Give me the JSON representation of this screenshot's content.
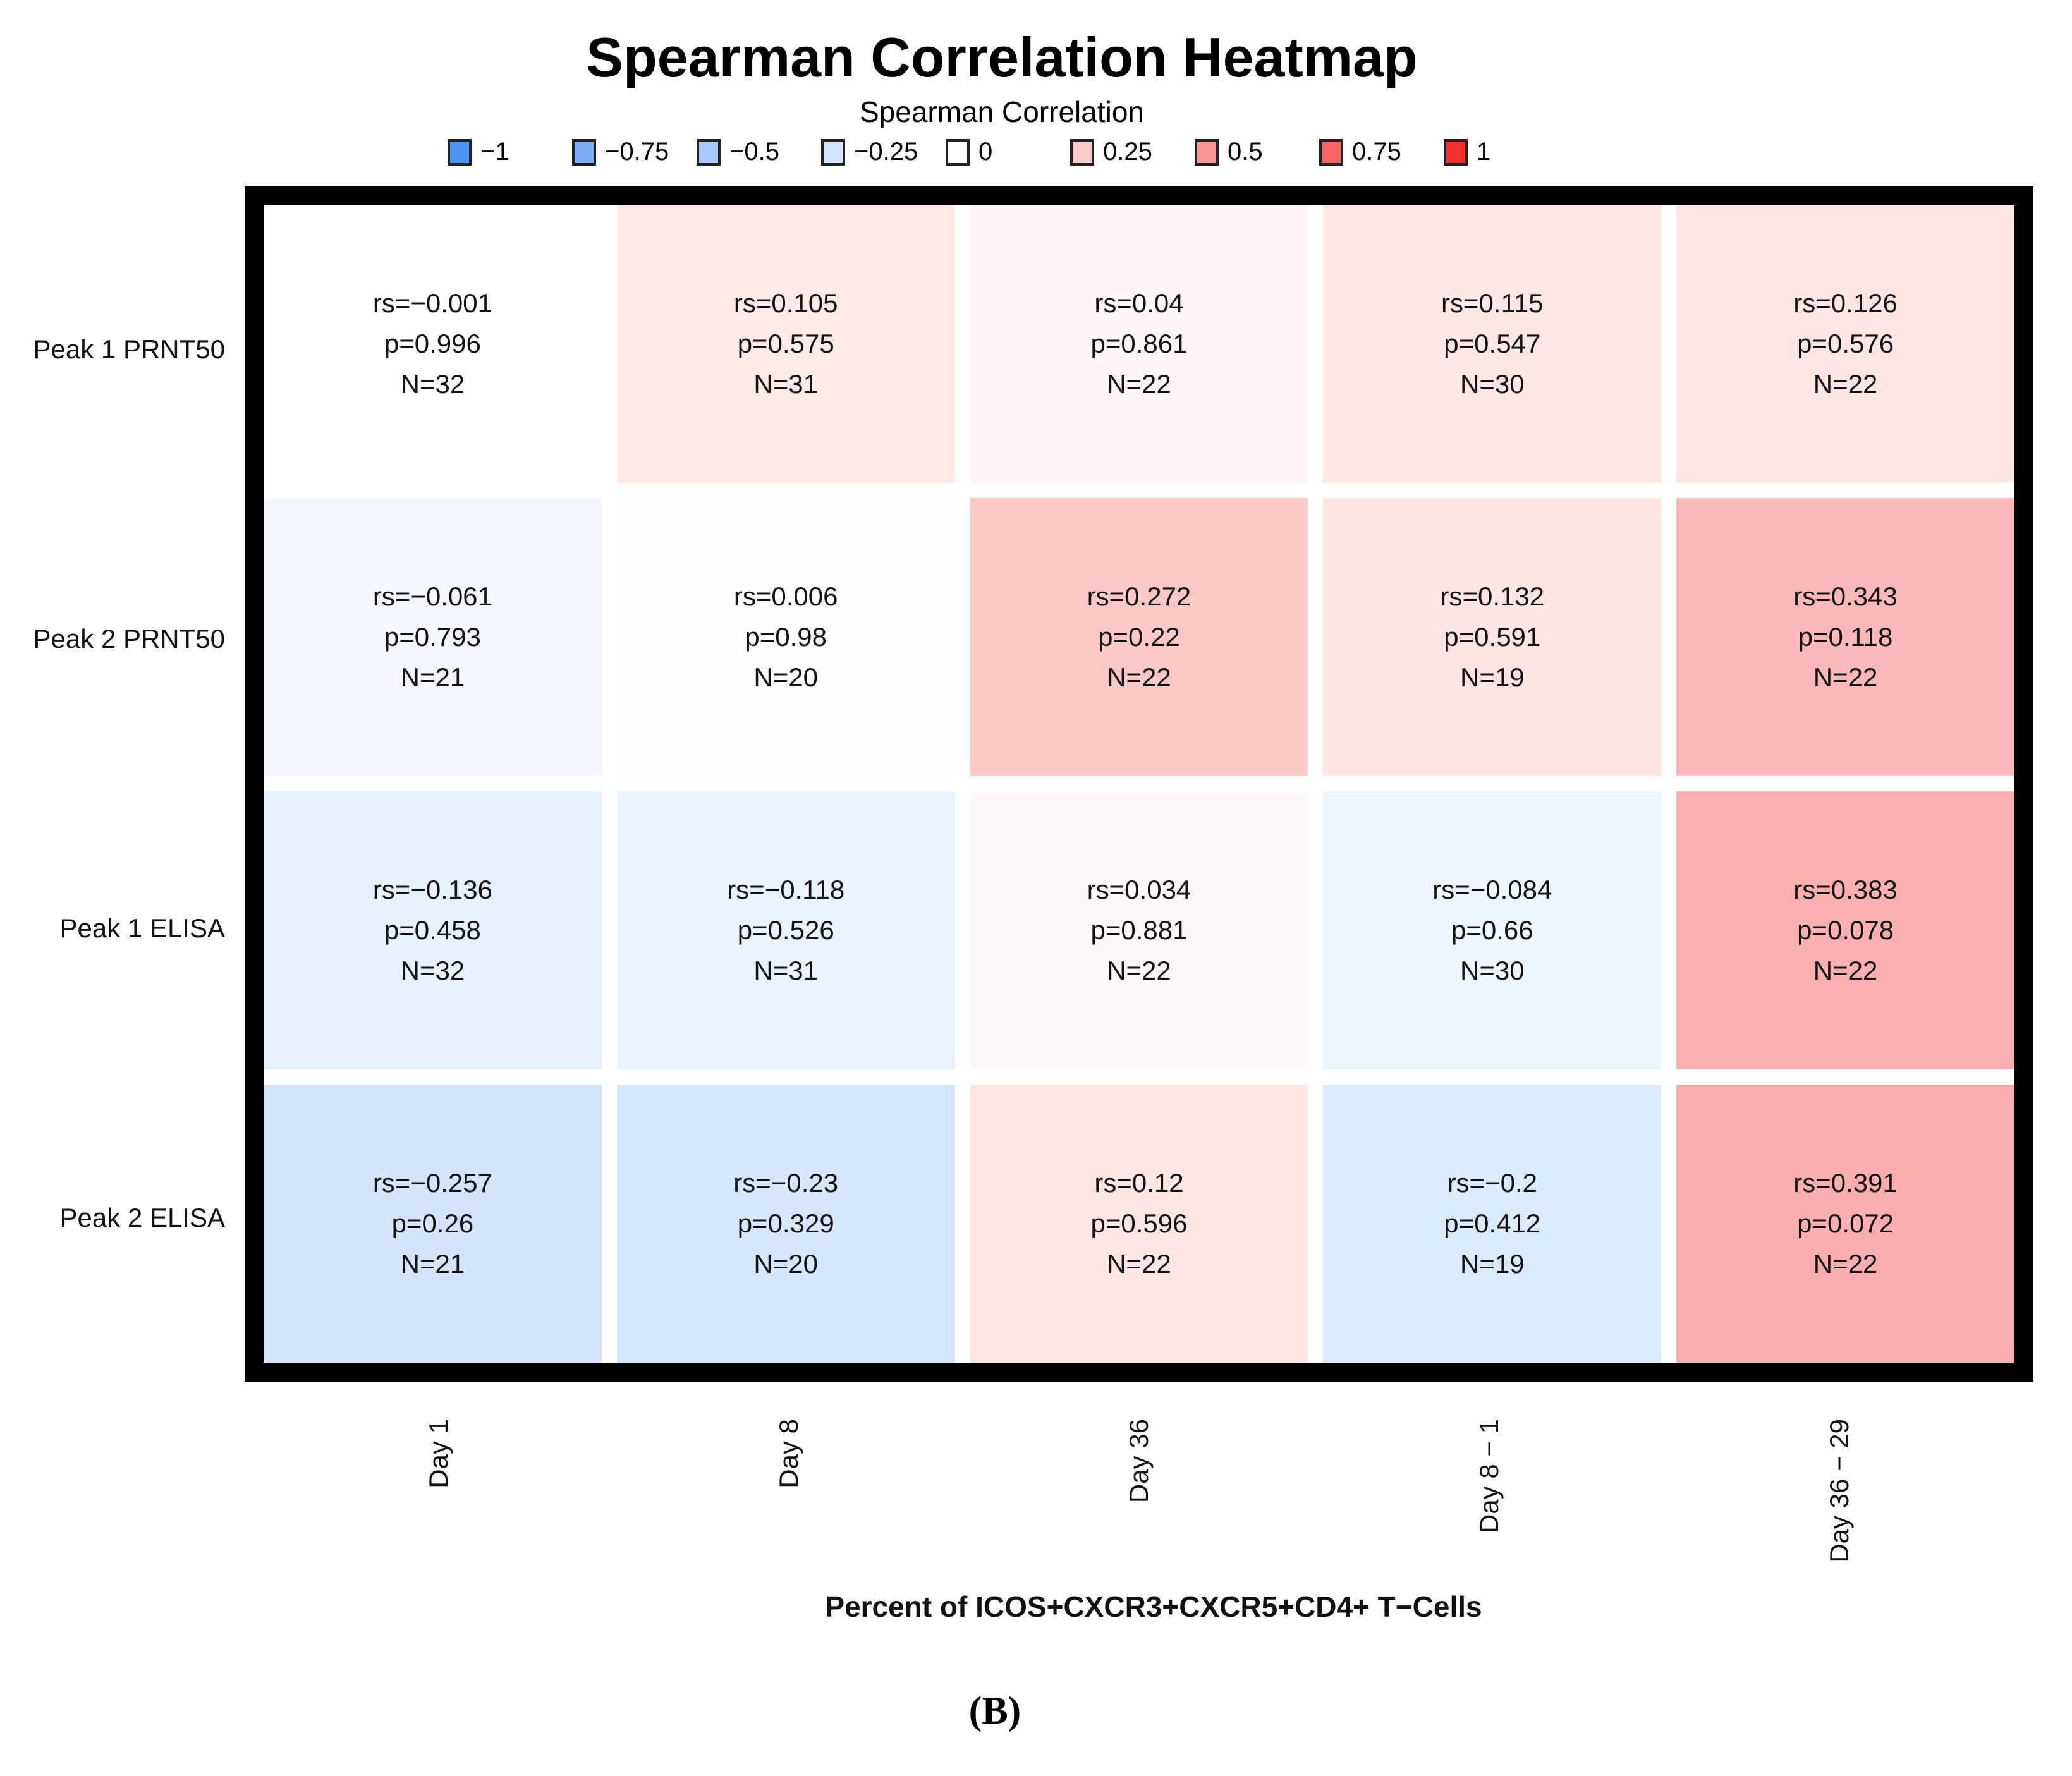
{
  "title": "Spearman Correlation Heatmap",
  "legend": {
    "title": "Spearman Correlation",
    "items": [
      {
        "value": "−1",
        "color": "#4D94F1"
      },
      {
        "value": "−0.75",
        "color": "#7AAFF5"
      },
      {
        "value": "−0.5",
        "color": "#A6CAF8"
      },
      {
        "value": "−0.25",
        "color": "#D3E4FC"
      },
      {
        "value": "0",
        "color": "#FFFFFF"
      },
      {
        "value": "0.25",
        "color": "#FCCBCB"
      },
      {
        "value": "0.5",
        "color": "#FA9898"
      },
      {
        "value": "0.75",
        "color": "#F76464"
      },
      {
        "value": "1",
        "color": "#F43030"
      }
    ]
  },
  "caption": "(B)",
  "chart_data": {
    "type": "heatmap",
    "title": "Spearman Correlation Heatmap",
    "legend_title": "Spearman Correlation",
    "color_scale": {
      "min": -1,
      "max": 1,
      "min_color": "#4D94F1",
      "mid_color": "#FFFFFF",
      "max_color": "#F43030",
      "legend_ticks": [
        -1,
        -0.75,
        -0.5,
        -0.25,
        0,
        0.25,
        0.5,
        0.75,
        1
      ]
    },
    "rows": [
      "Peak 1 PRNT50",
      "Peak 2 PRNT50",
      "Peak 1 ELISA",
      "Peak 2 ELISA"
    ],
    "columns": [
      "Day 1",
      "Day 8",
      "Day 36",
      "Day 8 − 1",
      "Day 36 − 29"
    ],
    "xlabel": "Percent of ICOS+CXCR3+CXCR5+CD4+ T−Cells",
    "cells": [
      [
        {
          "rs": -0.001,
          "p": 0.996,
          "N": 32,
          "label": [
            "rs=−0.001",
            "p=0.996",
            "N=32"
          ],
          "color": "#FFFFFF"
        },
        {
          "rs": 0.105,
          "p": 0.575,
          "N": 31,
          "label": [
            "rs=0.105",
            "p=0.575",
            "N=31"
          ],
          "color": "#FEE9E9"
        },
        {
          "rs": 0.04,
          "p": 0.861,
          "N": 22,
          "label": [
            "rs=0.04",
            "p=0.861",
            "N=22"
          ],
          "color": "#FFF7F7"
        },
        {
          "rs": 0.115,
          "p": 0.547,
          "N": 30,
          "label": [
            "rs=0.115",
            "p=0.547",
            "N=30"
          ],
          "color": "#FEE7E7"
        },
        {
          "rs": 0.126,
          "p": 0.576,
          "N": 22,
          "label": [
            "rs=0.126",
            "p=0.576",
            "N=22"
          ],
          "color": "#FEE5E5"
        }
      ],
      [
        {
          "rs": -0.061,
          "p": 0.793,
          "N": 21,
          "label": [
            "rs=−0.061",
            "p=0.793",
            "N=21"
          ],
          "color": "#F4F8FE"
        },
        {
          "rs": 0.006,
          "p": 0.98,
          "N": 20,
          "label": [
            "rs=0.006",
            "p=0.98",
            "N=20"
          ],
          "color": "#FFFEFE"
        },
        {
          "rs": 0.272,
          "p": 0.22,
          "N": 22,
          "label": [
            "rs=0.272",
            "p=0.22",
            "N=22"
          ],
          "color": "#FCC7C7"
        },
        {
          "rs": 0.132,
          "p": 0.591,
          "N": 19,
          "label": [
            "rs=0.132",
            "p=0.591",
            "N=19"
          ],
          "color": "#FEE4E4"
        },
        {
          "rs": 0.343,
          "p": 0.118,
          "N": 22,
          "label": [
            "rs=0.343",
            "p=0.118",
            "N=22"
          ],
          "color": "#FBB8B8"
        }
      ],
      [
        {
          "rs": -0.136,
          "p": 0.458,
          "N": 32,
          "label": [
            "rs=−0.136",
            "p=0.458",
            "N=32"
          ],
          "color": "#E7F0FD"
        },
        {
          "rs": -0.118,
          "p": 0.526,
          "N": 31,
          "label": [
            "rs=−0.118",
            "p=0.526",
            "N=31"
          ],
          "color": "#EAF2FD"
        },
        {
          "rs": 0.034,
          "p": 0.881,
          "N": 22,
          "label": [
            "rs=0.034",
            "p=0.881",
            "N=22"
          ],
          "color": "#FFF8F8"
        },
        {
          "rs": -0.084,
          "p": 0.66,
          "N": 30,
          "label": [
            "rs=−0.084",
            "p=0.66",
            "N=30"
          ],
          "color": "#F0F6FE"
        },
        {
          "rs": 0.383,
          "p": 0.078,
          "N": 22,
          "label": [
            "rs=0.383",
            "p=0.078",
            "N=22"
          ],
          "color": "#FBB0B0"
        }
      ],
      [
        {
          "rs": -0.257,
          "p": 0.26,
          "N": 21,
          "label": [
            "rs=−0.257",
            "p=0.26",
            "N=21"
          ],
          "color": "#D5E4F8"
        },
        {
          "rs": -0.23,
          "p": 0.329,
          "N": 20,
          "label": [
            "rs=−0.23",
            "p=0.329",
            "N=20"
          ],
          "color": "#D6E7FC"
        },
        {
          "rs": 0.12,
          "p": 0.596,
          "N": 22,
          "label": [
            "rs=0.12",
            "p=0.596",
            "N=22"
          ],
          "color": "#FEE6E6"
        },
        {
          "rs": -0.2,
          "p": 0.412,
          "N": 19,
          "label": [
            "rs=−0.2",
            "p=0.412",
            "N=19"
          ],
          "color": "#DBEAFC"
        },
        {
          "rs": 0.391,
          "p": 0.072,
          "N": 22,
          "label": [
            "rs=0.391",
            "p=0.072",
            "N=22"
          ],
          "color": "#FBAEAE"
        }
      ]
    ]
  }
}
